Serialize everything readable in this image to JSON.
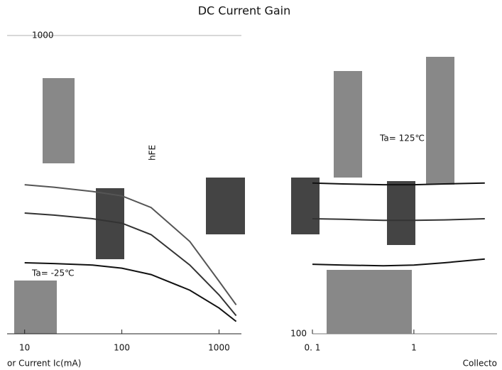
{
  "chart_data": [
    {
      "type": "line",
      "title": "DC Current Gain",
      "ylabel": "hFE",
      "xlabel": "or Current   Ic(mA)",
      "annotations": [
        "Ta= -25℃"
      ],
      "log_x": true,
      "log_y": true,
      "xlim": [
        6.6,
        1700
      ],
      "xticks": [
        10,
        100,
        1000
      ],
      "ylim": [
        100,
        1000
      ],
      "yticks": [
        1000
      ],
      "x": [
        10,
        20,
        50,
        100,
        200,
        500,
        1000,
        1500
      ],
      "series": [
        {
          "color": "#555555",
          "values": [
            316,
            310,
            300,
            290,
            265,
            204,
            150,
            125
          ]
        },
        {
          "color": "#333333",
          "values": [
            254,
            250,
            243,
            235,
            215,
            170,
            135,
            115
          ]
        },
        {
          "color": "#111111",
          "values": [
            173,
            172,
            170,
            166,
            158,
            140,
            122,
            110
          ]
        }
      ]
    },
    {
      "type": "line",
      "xlabel": "Collecto",
      "annotations": [
        "Ta= 125℃"
      ],
      "log_x": true,
      "log_y": true,
      "xlim": [
        0.1,
        6.6
      ],
      "xticks": [
        {
          "value": 0.1,
          "label": "0. 1"
        },
        1
      ],
      "ylim": [
        100,
        1000
      ],
      "yticks": [
        100
      ],
      "x": [
        0.1,
        0.2,
        0.5,
        1,
        2,
        5
      ],
      "series": [
        {
          "color": "#111111",
          "values": [
            320,
            318,
            316,
            316,
            318,
            320
          ]
        },
        {
          "color": "#333333",
          "values": [
            243,
            242,
            240,
            240,
            241,
            243
          ]
        },
        {
          "color": "#111111",
          "values": [
            171,
            170,
            169,
            170,
            173,
            178
          ]
        }
      ]
    }
  ]
}
